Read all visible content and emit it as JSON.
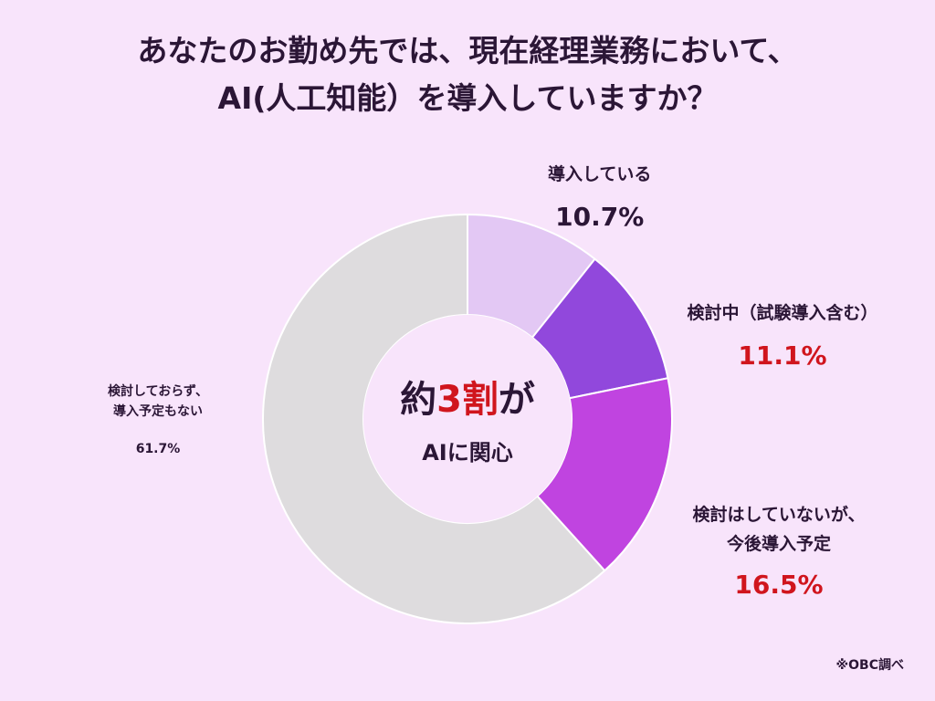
{
  "title": {
    "line1": "あなたのお勤め先では、現在経理業務において、",
    "line2": "AI(人工知能）を導入していますか？"
  },
  "center": {
    "prefix": "約",
    "number": "3割",
    "suffix": "が",
    "sub": "AIに関心"
  },
  "source": "※OBC調べ",
  "chart_data": {
    "type": "pie",
    "donut": true,
    "title": "あなたのお勤め先では、現在経理業務において、AI(人工知能）を導入していますか？",
    "slices": [
      {
        "label": "導入している",
        "value": 10.7,
        "value_label": "10.7%",
        "color": "#e3c8f4",
        "label_color": "#2b1636"
      },
      {
        "label": "検討中（試験導入含む）",
        "value": 11.1,
        "value_label": "11.1%",
        "color": "#9148dc",
        "label_color": "#d0151d"
      },
      {
        "label": "検討はしていないが、今後導入予定",
        "value": 16.5,
        "value_label": "16.5%",
        "color": "#c044e0",
        "label_color": "#d0151d"
      },
      {
        "label": "検討しておらず、導入予定もない",
        "value": 61.7,
        "value_label": "61.7%",
        "color": "#dedcde",
        "label_color": "#2b1636"
      }
    ]
  }
}
